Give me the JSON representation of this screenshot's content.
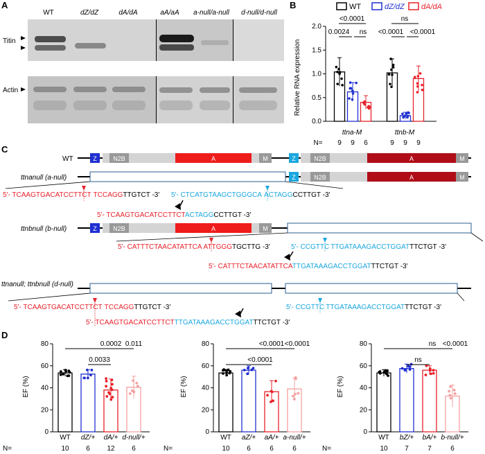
{
  "panelA": {
    "letter": "A",
    "lanes": [
      "WT",
      "dZ/dZ",
      "dA/dA",
      "aA/aA",
      "a-null/a-null",
      "d-null/d-null"
    ],
    "row_titin": "Titin",
    "row_actin": "Actin"
  },
  "panelB": {
    "letter": "B",
    "legend": [
      "WT",
      "dZ/dZ",
      "dA/dA"
    ],
    "ylabel": "Relative RNA expression",
    "groups": [
      "ttna-M",
      "ttnb-M"
    ],
    "n_label": "N=",
    "n_values": [
      "9",
      "9",
      "6",
      "9",
      "9",
      "9"
    ],
    "pvalues": [
      "<0.0001",
      "0.0024",
      "ns",
      "ns",
      "<0.0001",
      "<0.0001"
    ]
  },
  "chart_data": {
    "type": "bar",
    "ylabel": "Relative RNA expression",
    "ylim": [
      0,
      2.0
    ],
    "categories": [
      "ttna-M",
      "ttnb-M"
    ],
    "series": [
      {
        "name": "WT",
        "values": [
          1.04,
          1.02
        ],
        "color": "#000000"
      },
      {
        "name": "dZ/dZ",
        "values": [
          0.62,
          0.12
        ],
        "color": "#1f2fd0"
      },
      {
        "name": "dA/dA",
        "values": [
          0.4,
          0.9
        ],
        "color": "#e8212a"
      }
    ]
  },
  "panelC": {
    "letter": "C",
    "wt_label": "WT",
    "a_null_label": "ttnanull (a-null)",
    "b_null_label": "ttnbnull (b-null)",
    "d_null_label": "ttnanull; ttnbnull (d-null)",
    "domains": {
      "z": "Z",
      "n2b": "N2B",
      "a": "A",
      "m": "M"
    },
    "seq_a_red": "5'- TCAAGTGACATCCTTCT",
    "seq_a_red2": "TCCAGG",
    "seq_a_black": "TTGTCT -3'",
    "seq_a_blue_pre": "5'- CTCATGTAAGCTGGGCA",
    "seq_a_blue": "ACTAGG",
    "seq_a_black2": "CCTTGT -3'",
    "seq_a_res_red": "5'- TCAAGTGACATCCTTCT",
    "seq_a_res_blue": "ACTAGG",
    "seq_a_res_black": "CCTTGT -3'",
    "seq_b_red": "5'- CATTTCTAACATATTCA",
    "seq_b_red2": "ATTGGG",
    "seq_b_black": "TGCTTG -3'",
    "seq_b_blue_pre": "5'- CCGTTC",
    "seq_b_blue": "TTGATAAAGACCTGGAT",
    "seq_b_black2": "TTCTGT -3'",
    "seq_b_res_red": "5'- CATTTCTAACATATTCA",
    "seq_b_res_blue": "TTGATAAAGACCTGGAT",
    "seq_b_res_black": "TTCTGT -3'",
    "seq_d_red": "5'- TCAAGTGACATCCTTCT",
    "seq_d_red2": "TCCAGG",
    "seq_d_black": "TTGTCT -3'",
    "seq_d_blue_pre": "5'- CCGTTC",
    "seq_d_blue": "TTGATAAAGACCTGGAT",
    "seq_d_black2": "TTCTGT -3'",
    "seq_d_res_red": "5'- TCAAGTGACATCCTTCT",
    "seq_d_res_blue": "TTGATAAAGACCTGGAT",
    "seq_d_res_black": "TTCTGT -3'"
  },
  "panelD": {
    "letter": "D",
    "ylabel": "EF (%)",
    "n_label": "N=",
    "charts": [
      {
        "labels": [
          "WT",
          "dZ/+",
          "dA/+",
          "d-null/+"
        ],
        "n": [
          "10",
          "6",
          "12",
          "6"
        ],
        "values": [
          53.5,
          52.5,
          38,
          40.5
        ],
        "colors": [
          "#000000",
          "#1f2fd0",
          "#e8212a",
          "#f4a0a0"
        ],
        "pvalues": [
          "0.0002",
          "0.011",
          "0.0033"
        ]
      },
      {
        "labels": [
          "WT",
          "aZ/+",
          "aA/+",
          "a-null/+"
        ],
        "n": [
          "10",
          "6",
          "6",
          "6"
        ],
        "values": [
          53.5,
          56,
          36.5,
          39
        ],
        "colors": [
          "#000000",
          "#1f2fd0",
          "#e8212a",
          "#f4a0a0"
        ],
        "pvalues": [
          "<0.0001",
          "<0.0001",
          "<0.0001"
        ]
      },
      {
        "labels": [
          "WT",
          "bZ/+",
          "bA/+",
          "b-null/+"
        ],
        "n": [
          "10",
          "7",
          "7",
          "6"
        ],
        "values": [
          53.5,
          57.5,
          56,
          32.5
        ],
        "colors": [
          "#000000",
          "#1f2fd0",
          "#e8212a",
          "#f4a0a0"
        ],
        "pvalues": [
          "ns",
          "<0.0001",
          "ns"
        ]
      }
    ],
    "ylim": [
      0,
      80
    ]
  }
}
